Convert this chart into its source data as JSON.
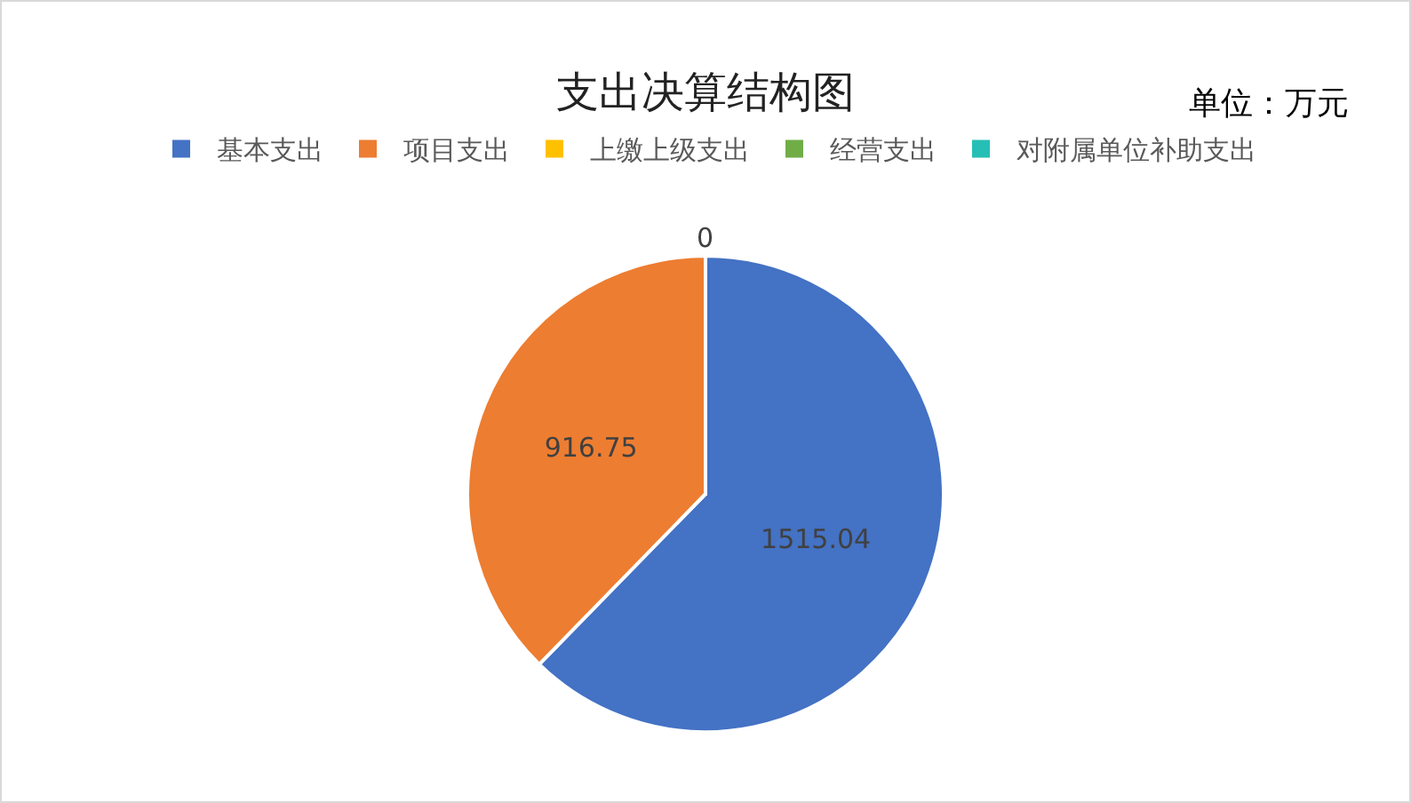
{
  "chart_data": {
    "type": "pie",
    "title": "支出决算结构图",
    "annotations": [
      "单位：万元"
    ],
    "categories": [
      "基本支出",
      "项目支出",
      "上缴上级支出",
      "经营支出",
      "对附属单位补助支出"
    ],
    "values": [
      1515.04,
      916.75,
      0,
      0,
      0
    ],
    "colors": [
      "#4472c4",
      "#ed7d31",
      "#ffc000",
      "#70ad47",
      "#26bfb5"
    ],
    "value_labels": [
      "1515.04",
      "916.75",
      "0",
      null,
      null
    ],
    "legend": "top"
  }
}
